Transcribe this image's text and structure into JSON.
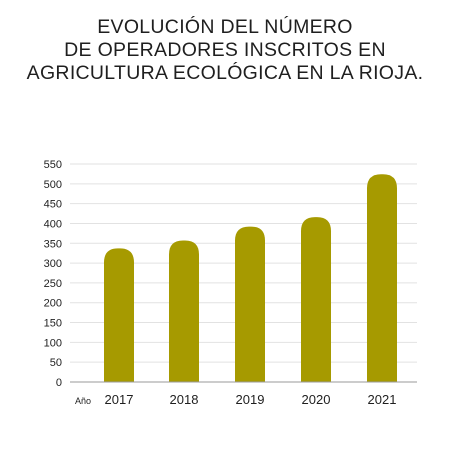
{
  "title_lines": [
    "EVOLUCIÓN DEL NÚMERO",
    "DE OPERADORES INSCRITOS EN",
    "AGRICULTURA ECOLÓGICA EN LA RIOJA."
  ],
  "chart_data": {
    "type": "bar",
    "title": "EVOLUCIÓN DEL NÚMERO DE OPERADORES INSCRITOS EN AGRICULTURA ECOLÓGICA EN LA RIOJA.",
    "xlabel": "Año",
    "ylabel": "",
    "categories": [
      "2017",
      "2018",
      "2019",
      "2020",
      "2021"
    ],
    "values": [
      337,
      357,
      392,
      416,
      524
    ],
    "ylim": [
      0,
      550
    ],
    "yticks": [
      0,
      50,
      100,
      150,
      200,
      250,
      300,
      350,
      400,
      450,
      500,
      550
    ],
    "grid": true,
    "legend": "none",
    "bar_color": "#a69a00",
    "grid_color": "#e2e2e2"
  }
}
